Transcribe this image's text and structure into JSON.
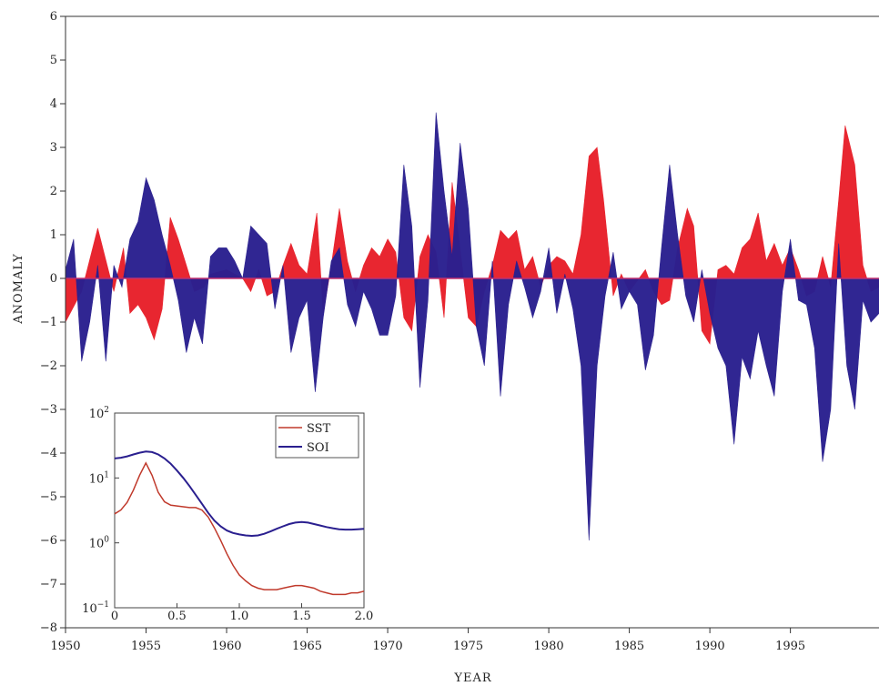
{
  "chart_data": [
    {
      "type": "area",
      "title": "",
      "xlabel": "YEAR",
      "ylabel": "ANOMALY",
      "xlim": [
        1950,
        2000.5
      ],
      "ylim": [
        -8,
        6
      ],
      "xticks": [
        1950,
        1955,
        1960,
        1965,
        1970,
        1975,
        1980,
        1985,
        1990,
        1995
      ],
      "yticks": [
        6,
        5,
        4,
        3,
        2,
        1,
        0,
        -1,
        -2,
        -3,
        -4,
        -5,
        -6,
        -7,
        -8
      ],
      "xtick_labels": [
        "1950",
        "1955",
        "1960",
        "1965",
        "1970",
        "1975",
        "1980",
        "1985",
        "1990",
        "1995"
      ],
      "ytick_labels": [
        "6",
        "5",
        "4",
        "3",
        "2",
        "1",
        "0",
        "−1",
        "−2",
        "−3",
        "−4",
        "−5",
        "−6",
        "−7",
        "−8"
      ],
      "series": [
        {
          "color": "#e8202a",
          "x": [
            1950,
            1951,
            1952,
            1953,
            1953.6,
            1954,
            1954.5,
            1955,
            1955.5,
            1956,
            1956.5,
            1957,
            1957.5,
            1958,
            1958.6,
            1959,
            1960,
            1961,
            1961.5,
            1962,
            1962.5,
            1963,
            1963.5,
            1964,
            1964.5,
            1965,
            1965.6,
            1966,
            1966.5,
            1967,
            1967.5,
            1968,
            1968.5,
            1969,
            1969.5,
            1970,
            1970.5,
            1971,
            1971.5,
            1972,
            1972.5,
            1973,
            1973.5,
            1974,
            1975,
            1975.5,
            1976,
            1976.5,
            1977,
            1977.5,
            1978,
            1978.5,
            1979,
            1979.5,
            1980,
            1980.5,
            1981,
            1981.5,
            1982,
            1982.5,
            1983,
            1983.4,
            1984,
            1984.5,
            1985,
            1986,
            1986.5,
            1987,
            1987.5,
            1988,
            1988.6,
            1989,
            1989.5,
            1990,
            1990.5,
            1991,
            1991.5,
            1992,
            1992.5,
            1993,
            1993.5,
            1994,
            1994.5,
            1995,
            1995.5,
            1996,
            1996.5,
            1997,
            1997.5,
            1998,
            1998.4,
            1999,
            1999.5,
            2000,
            2000.5
          ],
          "y": [
            -1.0,
            -0.3,
            1.15,
            -0.3,
            0.7,
            -0.8,
            -0.6,
            -0.9,
            -1.4,
            -0.7,
            1.4,
            0.9,
            0.3,
            -0.3,
            -0.2,
            0.1,
            0.2,
            0.0,
            -0.3,
            0.2,
            -0.4,
            -0.3,
            0.3,
            0.8,
            0.3,
            0.1,
            1.5,
            -0.8,
            0.3,
            1.6,
            0.4,
            -0.3,
            0.3,
            0.7,
            0.5,
            0.9,
            0.6,
            -0.9,
            -1.2,
            0.5,
            1.0,
            0.6,
            -0.9,
            2.2,
            -0.9,
            -1.1,
            -0.3,
            0.3,
            1.1,
            0.9,
            1.1,
            0.2,
            0.5,
            -0.2,
            0.3,
            0.5,
            0.4,
            0.1,
            1.0,
            2.8,
            3.0,
            1.8,
            -0.4,
            0.1,
            -0.3,
            0.2,
            -0.3,
            -0.6,
            -0.5,
            0.7,
            1.6,
            1.2,
            -1.2,
            -1.5,
            0.2,
            0.3,
            0.1,
            0.7,
            0.9,
            1.5,
            0.4,
            0.8,
            0.3,
            0.7,
            0.2,
            -0.4,
            -0.3,
            0.5,
            -0.2,
            1.8,
            3.5,
            2.6,
            0.3,
            -0.3,
            -0.2
          ]
        },
        {
          "color": "#2a1f8f",
          "x": [
            1950,
            1950.5,
            1951,
            1951.5,
            1952,
            1952.5,
            1953,
            1953.5,
            1954,
            1954.5,
            1955,
            1955.5,
            1956,
            1956.5,
            1957,
            1957.5,
            1958,
            1958.5,
            1959,
            1959.5,
            1960,
            1960.5,
            1961,
            1961.5,
            1962,
            1962.5,
            1963,
            1963.5,
            1964,
            1964.5,
            1965,
            1965.5,
            1966,
            1966.5,
            1967,
            1967.5,
            1968,
            1968.5,
            1969,
            1969.5,
            1970,
            1970.5,
            1971,
            1971.5,
            1972,
            1972.5,
            1973,
            1973.5,
            1974,
            1974.5,
            1975,
            1975.5,
            1976,
            1976.5,
            1977,
            1977.5,
            1978,
            1978.5,
            1979,
            1979.5,
            1980,
            1980.5,
            1981,
            1981.5,
            1982,
            1982.5,
            1983,
            1983.5,
            1984,
            1984.5,
            1985,
            1985.5,
            1986,
            1986.5,
            1987,
            1987.5,
            1988,
            1988.5,
            1989,
            1989.5,
            1990,
            1990.5,
            1991,
            1991.5,
            1992,
            1992.5,
            1993,
            1993.5,
            1994,
            1994.5,
            1995,
            1995.5,
            1996,
            1996.5,
            1997,
            1997.5,
            1998,
            1998.5,
            1999,
            1999.5,
            2000,
            2000.5
          ],
          "y": [
            0.2,
            0.9,
            -1.9,
            -1.0,
            0.3,
            -1.9,
            0.3,
            -0.2,
            0.9,
            1.3,
            2.3,
            1.8,
            1.0,
            0.3,
            -0.5,
            -1.7,
            -0.9,
            -1.5,
            0.5,
            0.7,
            0.7,
            0.4,
            0.0,
            1.2,
            1.0,
            0.8,
            -0.7,
            0.3,
            -1.7,
            -0.9,
            -0.5,
            -2.6,
            -0.9,
            0.4,
            0.7,
            -0.6,
            -1.1,
            -0.3,
            -0.7,
            -1.3,
            -1.3,
            -0.4,
            2.6,
            1.2,
            -2.5,
            -0.5,
            3.8,
            2.0,
            0.5,
            3.1,
            1.6,
            -1.1,
            -2.0,
            0.4,
            -2.7,
            -0.6,
            0.4,
            -0.2,
            -0.9,
            -0.3,
            0.7,
            -0.8,
            0.1,
            -0.7,
            -2.0,
            -6.0,
            -2.0,
            -0.4,
            0.6,
            -0.7,
            -0.3,
            -0.6,
            -2.1,
            -1.3,
            0.7,
            2.6,
            1.0,
            -0.4,
            -1.0,
            0.2,
            -0.8,
            -1.6,
            -2.0,
            -3.8,
            -1.8,
            -2.3,
            -1.2,
            -2.0,
            -2.7,
            -0.3,
            0.9,
            -0.5,
            -0.6,
            -1.6,
            -4.2,
            -3.0,
            0.8,
            -2.0,
            -3.0,
            -0.5,
            -1.0,
            -0.8
          ]
        }
      ]
    },
    {
      "type": "line",
      "title": "",
      "xlabel": "",
      "ylabel": "",
      "xlim": [
        0,
        2.0
      ],
      "ylim": [
        0.1,
        100
      ],
      "yscale": "log",
      "xticks": [
        0,
        0.5,
        1.0,
        1.5,
        2.0
      ],
      "xtick_labels": [
        "0",
        "0.5",
        "1.0",
        "1.5",
        "2.0"
      ],
      "ytick_labels": [
        {
          "base": "10",
          "exp": "2",
          "value": 100
        },
        {
          "base": "10",
          "exp": "1",
          "value": 10
        },
        {
          "base": "10",
          "exp": "0",
          "value": 1
        },
        {
          "base": "10",
          "exp": "−1",
          "value": 0.1
        }
      ],
      "legend": "top-right",
      "series": [
        {
          "name": "SST",
          "color": "#c0392b",
          "x": [
            0,
            0.05,
            0.1,
            0.15,
            0.2,
            0.25,
            0.3,
            0.35,
            0.4,
            0.45,
            0.5,
            0.55,
            0.6,
            0.65,
            0.7,
            0.75,
            0.8,
            0.85,
            0.9,
            0.95,
            1.0,
            1.05,
            1.1,
            1.15,
            1.2,
            1.25,
            1.3,
            1.35,
            1.4,
            1.45,
            1.5,
            1.55,
            1.6,
            1.65,
            1.7,
            1.75,
            1.8,
            1.85,
            1.9,
            1.95,
            2.0
          ],
          "y": [
            2.8,
            3.2,
            4.2,
            6.5,
            11.0,
            17.0,
            11.0,
            6.0,
            4.3,
            3.8,
            3.7,
            3.6,
            3.5,
            3.5,
            3.2,
            2.5,
            1.7,
            1.1,
            0.68,
            0.45,
            0.32,
            0.26,
            0.22,
            0.2,
            0.19,
            0.19,
            0.19,
            0.2,
            0.21,
            0.22,
            0.22,
            0.21,
            0.2,
            0.18,
            0.17,
            0.16,
            0.16,
            0.16,
            0.17,
            0.17,
            0.18
          ]
        },
        {
          "name": "SOI",
          "color": "#2a1f8f",
          "x": [
            0,
            0.05,
            0.1,
            0.15,
            0.2,
            0.25,
            0.3,
            0.35,
            0.4,
            0.45,
            0.5,
            0.55,
            0.6,
            0.65,
            0.7,
            0.75,
            0.8,
            0.85,
            0.9,
            0.95,
            1.0,
            1.05,
            1.1,
            1.15,
            1.2,
            1.25,
            1.3,
            1.35,
            1.4,
            1.45,
            1.5,
            1.55,
            1.6,
            1.65,
            1.7,
            1.75,
            1.8,
            1.85,
            1.9,
            1.95,
            2.0
          ],
          "y": [
            20.0,
            20.5,
            21.5,
            23.0,
            24.5,
            25.5,
            25.0,
            23.0,
            20.0,
            16.5,
            13.0,
            10.0,
            7.5,
            5.5,
            4.0,
            2.9,
            2.2,
            1.8,
            1.55,
            1.42,
            1.35,
            1.3,
            1.28,
            1.3,
            1.38,
            1.5,
            1.65,
            1.8,
            1.95,
            2.05,
            2.1,
            2.05,
            1.95,
            1.85,
            1.75,
            1.68,
            1.62,
            1.6,
            1.6,
            1.62,
            1.65
          ]
        }
      ]
    }
  ]
}
